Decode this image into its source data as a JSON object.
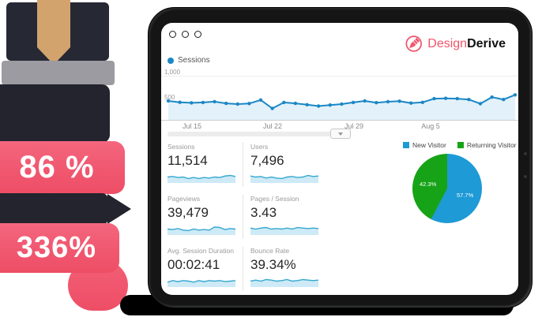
{
  "colors": {
    "pink": "#f05a72",
    "dark_shape": "#23242e",
    "gray_band": "#9b9ba1",
    "pencil": "#d2a36d",
    "blue": "#1b87c5",
    "blue_fill": "#e3f1fa",
    "spark_line": "#35a8cf",
    "spark_fill": "#cdeaf6",
    "pie_blue": "#1e9ad6",
    "pie_green": "#17a317",
    "logo_pink": "#f0536b"
  },
  "left_panel": {
    "stat_1": "86 %",
    "stat_2": "336%"
  },
  "logo": {
    "primary": "Design",
    "secondary": "Derive"
  },
  "chart_data": [
    {
      "type": "line",
      "name": "sessions-over-time",
      "legend": [
        "Sessions"
      ],
      "ylabels": [
        "1,000",
        "500"
      ],
      "ylim": [
        0,
        1000
      ],
      "grid": true,
      "area": true,
      "markers": "dots",
      "xticks": [
        "Jul 15",
        "Jul 22",
        "Jul 29",
        "Aug 5"
      ],
      "values": [
        500,
        473,
        462,
        470,
        486,
        452,
        438,
        448,
        518,
        352,
        470,
        452,
        425,
        398,
        418,
        438,
        470,
        500,
        465,
        485,
        495,
        458,
        472,
        545,
        552,
        545,
        528,
        445,
        575,
        528,
        620
      ]
    },
    {
      "type": "pie",
      "name": "visitor-split",
      "legend": [
        "New Visitor",
        "Returning Visitor"
      ],
      "labels": [
        "57.7%",
        "42.3%"
      ],
      "values": [
        57.7,
        42.3
      ],
      "colors": [
        "#1e9ad6",
        "#17a317"
      ],
      "legend_position": "top"
    },
    {
      "type": "table",
      "name": "metric-scorecards",
      "cards": [
        {
          "label": "Sessions",
          "value": "11,514",
          "spark": [
            5,
            5.5,
            4.5,
            5,
            3.5,
            4.5,
            3.5,
            4.5,
            4,
            5,
            4.5,
            6,
            6.5,
            5.5
          ]
        },
        {
          "label": "Users",
          "value": "7,496",
          "spark": [
            6,
            5,
            5.5,
            4,
            5,
            4,
            3.5,
            5,
            5.5,
            4.5,
            5,
            6.5,
            5.5,
            6
          ]
        },
        {
          "label": "Pageviews",
          "value": "39,479",
          "spark": [
            5,
            4.5,
            5.5,
            4,
            3.5,
            5,
            4,
            4.5,
            4,
            7,
            6.5,
            4.5,
            5.5,
            5
          ]
        },
        {
          "label": "Pages / Session",
          "value": "3.43",
          "spark": [
            6,
            5,
            6,
            6.5,
            5,
            5.5,
            5,
            6,
            5,
            6.5,
            6,
            5.5,
            6,
            5.5
          ]
        },
        {
          "label": "Avg. Session Duration",
          "value": "00:02:41",
          "spark": [
            4,
            5.5,
            4.5,
            5.5,
            5,
            4,
            5.5,
            4.5,
            5.5,
            5,
            5.5,
            4.5,
            5,
            5.5
          ]
        },
        {
          "label": "Bounce Rate",
          "value": "39.34%",
          "spark": [
            5,
            6,
            5,
            6.5,
            6,
            5,
            5.5,
            6.5,
            5,
            5.5,
            6.5,
            6,
            5.5,
            6
          ]
        }
      ]
    }
  ]
}
